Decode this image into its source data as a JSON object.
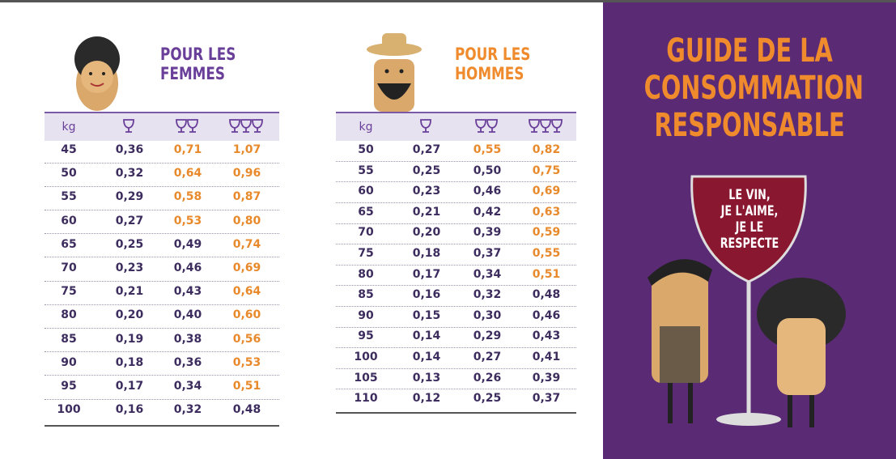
{
  "women": {
    "title": [
      "POUR LES",
      "FEMMES"
    ],
    "header": "kg",
    "rows": [
      {
        "kg": "45",
        "cells": [
          "0,36",
          "0,71",
          "1,07"
        ],
        "highlight": [
          false,
          true,
          true
        ]
      },
      {
        "kg": "50",
        "cells": [
          "0,32",
          "0,64",
          "0,96"
        ],
        "highlight": [
          false,
          true,
          true
        ]
      },
      {
        "kg": "55",
        "cells": [
          "0,29",
          "0,58",
          "0,87"
        ],
        "highlight": [
          false,
          true,
          true
        ]
      },
      {
        "kg": "60",
        "cells": [
          "0,27",
          "0,53",
          "0,80"
        ],
        "highlight": [
          false,
          true,
          true
        ]
      },
      {
        "kg": "65",
        "cells": [
          "0,25",
          "0,49",
          "0,74"
        ],
        "highlight": [
          false,
          false,
          true
        ]
      },
      {
        "kg": "70",
        "cells": [
          "0,23",
          "0,46",
          "0,69"
        ],
        "highlight": [
          false,
          false,
          true
        ]
      },
      {
        "kg": "75",
        "cells": [
          "0,21",
          "0,43",
          "0,64"
        ],
        "highlight": [
          false,
          false,
          true
        ]
      },
      {
        "kg": "80",
        "cells": [
          "0,20",
          "0,40",
          "0,60"
        ],
        "highlight": [
          false,
          false,
          true
        ]
      },
      {
        "kg": "85",
        "cells": [
          "0,19",
          "0,38",
          "0,56"
        ],
        "highlight": [
          false,
          false,
          true
        ]
      },
      {
        "kg": "90",
        "cells": [
          "0,18",
          "0,36",
          "0,53"
        ],
        "highlight": [
          false,
          false,
          true
        ]
      },
      {
        "kg": "95",
        "cells": [
          "0,17",
          "0,34",
          "0,51"
        ],
        "highlight": [
          false,
          false,
          true
        ]
      },
      {
        "kg": "100",
        "cells": [
          "0,16",
          "0,32",
          "0,48"
        ],
        "highlight": [
          false,
          false,
          false
        ]
      }
    ]
  },
  "men": {
    "title": [
      "POUR LES",
      "HOMMES"
    ],
    "header": "kg",
    "rows": [
      {
        "kg": "50",
        "cells": [
          "0,27",
          "0,55",
          "0,82"
        ],
        "highlight": [
          false,
          true,
          true
        ]
      },
      {
        "kg": "55",
        "cells": [
          "0,25",
          "0,50",
          "0,75"
        ],
        "highlight": [
          false,
          false,
          true
        ]
      },
      {
        "kg": "60",
        "cells": [
          "0,23",
          "0,46",
          "0,69"
        ],
        "highlight": [
          false,
          false,
          true
        ]
      },
      {
        "kg": "65",
        "cells": [
          "0,21",
          "0,42",
          "0,63"
        ],
        "highlight": [
          false,
          false,
          true
        ]
      },
      {
        "kg": "70",
        "cells": [
          "0,20",
          "0,39",
          "0,59"
        ],
        "highlight": [
          false,
          false,
          true
        ]
      },
      {
        "kg": "75",
        "cells": [
          "0,18",
          "0,37",
          "0,55"
        ],
        "highlight": [
          false,
          false,
          true
        ]
      },
      {
        "kg": "80",
        "cells": [
          "0,17",
          "0,34",
          "0,51"
        ],
        "highlight": [
          false,
          false,
          true
        ]
      },
      {
        "kg": "85",
        "cells": [
          "0,16",
          "0,32",
          "0,48"
        ],
        "highlight": [
          false,
          false,
          false
        ]
      },
      {
        "kg": "90",
        "cells": [
          "0,15",
          "0,30",
          "0,46"
        ],
        "highlight": [
          false,
          false,
          false
        ]
      },
      {
        "kg": "95",
        "cells": [
          "0,14",
          "0,29",
          "0,43"
        ],
        "highlight": [
          false,
          false,
          false
        ]
      },
      {
        "kg": "100",
        "cells": [
          "0,14",
          "0,27",
          "0,41"
        ],
        "highlight": [
          false,
          false,
          false
        ]
      },
      {
        "kg": "105",
        "cells": [
          "0,13",
          "0,26",
          "0,39"
        ],
        "highlight": [
          false,
          false,
          false
        ]
      },
      {
        "kg": "110",
        "cells": [
          "0,12",
          "0,25",
          "0,37"
        ],
        "highlight": [
          false,
          false,
          false
        ]
      }
    ]
  },
  "highlight_color": "#e8892b",
  "panel": {
    "title": [
      "GUIDE DE LA",
      "CONSOMMATION",
      "RESPONSABLE"
    ],
    "slogan": [
      "LE VIN,",
      "JE L'AIME,",
      "JE LE",
      "RESPECTE"
    ]
  }
}
